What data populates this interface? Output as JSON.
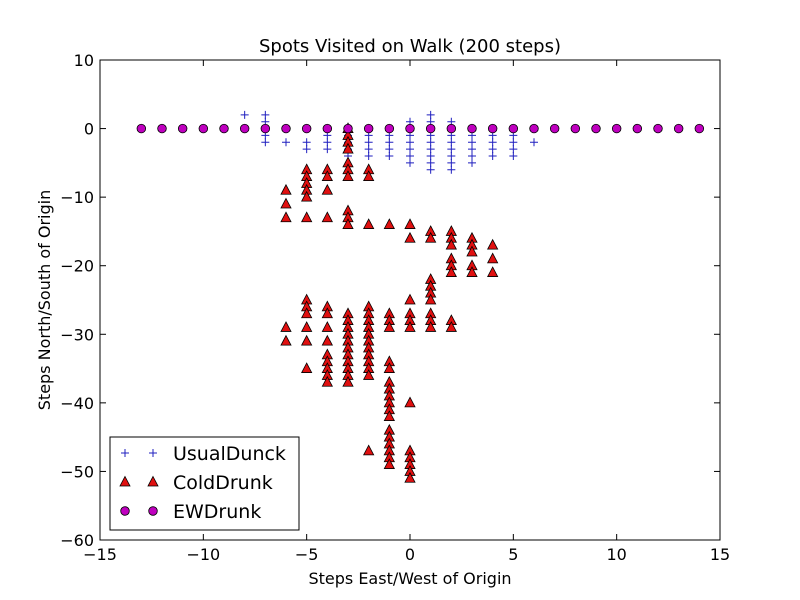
{
  "chart_data": {
    "type": "scatter",
    "title": "Spots Visited on Walk (200 steps)",
    "xlabel": "Steps East/West of Origin",
    "ylabel": "Steps North/South of Origin",
    "xlim": [
      -15,
      15
    ],
    "ylim": [
      -60,
      10
    ],
    "xticks": [
      -15,
      -10,
      -5,
      0,
      5,
      10,
      15
    ],
    "xtick_labels": [
      "−15",
      "−10",
      "−5",
      "0",
      "5",
      "10",
      "15"
    ],
    "yticks": [
      10,
      0,
      -10,
      -20,
      -30,
      -40,
      -50,
      -60
    ],
    "ytick_labels": [
      "10",
      "0",
      "−10",
      "−20",
      "−30",
      "−40",
      "−50",
      "−60"
    ],
    "grid": false,
    "legend_position": "lower-left",
    "series": [
      {
        "name": "UsualDunck",
        "marker": "plus",
        "color": "#1f1fbf",
        "points": [
          [
            -8,
            2
          ],
          [
            -8,
            0
          ],
          [
            -7,
            2
          ],
          [
            -7,
            1
          ],
          [
            -7,
            0
          ],
          [
            -7,
            -1
          ],
          [
            -7,
            -2
          ],
          [
            -6,
            0
          ],
          [
            -6,
            -2
          ],
          [
            -5,
            0
          ],
          [
            -5,
            -2
          ],
          [
            -5,
            -3
          ],
          [
            -4,
            0
          ],
          [
            -4,
            -1
          ],
          [
            -4,
            -2
          ],
          [
            -4,
            -3
          ],
          [
            -3,
            0
          ],
          [
            -3,
            -1
          ],
          [
            -3,
            -2
          ],
          [
            -3,
            -3
          ],
          [
            -3,
            -4
          ],
          [
            -2,
            0
          ],
          [
            -2,
            -1
          ],
          [
            -2,
            -2
          ],
          [
            -2,
            -3
          ],
          [
            -2,
            -4
          ],
          [
            -1,
            0
          ],
          [
            -1,
            -1
          ],
          [
            -1,
            -2
          ],
          [
            -1,
            -3
          ],
          [
            -1,
            -4
          ],
          [
            0,
            1
          ],
          [
            0,
            0
          ],
          [
            0,
            -1
          ],
          [
            0,
            -2
          ],
          [
            0,
            -3
          ],
          [
            0,
            -4
          ],
          [
            0,
            -5
          ],
          [
            1,
            2
          ],
          [
            1,
            1
          ],
          [
            1,
            0
          ],
          [
            1,
            -1
          ],
          [
            1,
            -2
          ],
          [
            1,
            -3
          ],
          [
            1,
            -4
          ],
          [
            1,
            -5
          ],
          [
            1,
            -6
          ],
          [
            2,
            1
          ],
          [
            2,
            0
          ],
          [
            2,
            -1
          ],
          [
            2,
            -2
          ],
          [
            2,
            -3
          ],
          [
            2,
            -4
          ],
          [
            2,
            -5
          ],
          [
            2,
            -6
          ],
          [
            3,
            0
          ],
          [
            3,
            -1
          ],
          [
            3,
            -2
          ],
          [
            3,
            -3
          ],
          [
            3,
            -4
          ],
          [
            3,
            -5
          ],
          [
            4,
            0
          ],
          [
            4,
            -1
          ],
          [
            4,
            -2
          ],
          [
            4,
            -3
          ],
          [
            4,
            -4
          ],
          [
            5,
            0
          ],
          [
            5,
            -1
          ],
          [
            5,
            -2
          ],
          [
            5,
            -3
          ],
          [
            5,
            -4
          ],
          [
            6,
            -2
          ]
        ]
      },
      {
        "name": "ColdDrunk",
        "marker": "triangle",
        "color": "#e01010",
        "points": [
          [
            -6,
            -9
          ],
          [
            -6,
            -11
          ],
          [
            -6,
            -13
          ],
          [
            -5,
            -6
          ],
          [
            -5,
            -7
          ],
          [
            -5,
            -8
          ],
          [
            -5,
            -9
          ],
          [
            -5,
            -10
          ],
          [
            -5,
            -13
          ],
          [
            -4,
            -6
          ],
          [
            -4,
            -7
          ],
          [
            -4,
            -9
          ],
          [
            -4,
            -13
          ],
          [
            -3,
            0
          ],
          [
            -3,
            -1
          ],
          [
            -3,
            -2
          ],
          [
            -3,
            -3
          ],
          [
            -3,
            -5
          ],
          [
            -3,
            -6
          ],
          [
            -3,
            -7
          ],
          [
            -3,
            -12
          ],
          [
            -3,
            -13
          ],
          [
            -3,
            -14
          ],
          [
            -2,
            -6
          ],
          [
            -2,
            -7
          ],
          [
            -2,
            -14
          ],
          [
            -1,
            -14
          ],
          [
            0,
            -14
          ],
          [
            0,
            -16
          ],
          [
            1,
            -15
          ],
          [
            1,
            -16
          ],
          [
            2,
            -15
          ],
          [
            2,
            -16
          ],
          [
            2,
            -17
          ],
          [
            2,
            -19
          ],
          [
            2,
            -20
          ],
          [
            2,
            -21
          ],
          [
            3,
            -16
          ],
          [
            3,
            -17
          ],
          [
            3,
            -18
          ],
          [
            3,
            -20
          ],
          [
            3,
            -21
          ],
          [
            4,
            -17
          ],
          [
            4,
            -19
          ],
          [
            4,
            -21
          ],
          [
            1,
            -22
          ],
          [
            1,
            -23
          ],
          [
            1,
            -24
          ],
          [
            1,
            -25
          ],
          [
            0,
            -25
          ],
          [
            0,
            -27
          ],
          [
            0,
            -28
          ],
          [
            0,
            -29
          ],
          [
            1,
            -27
          ],
          [
            1,
            -28
          ],
          [
            1,
            -29
          ],
          [
            2,
            -28
          ],
          [
            2,
            -29
          ],
          [
            -6,
            -29
          ],
          [
            -6,
            -31
          ],
          [
            -5,
            -25
          ],
          [
            -5,
            -26
          ],
          [
            -5,
            -27
          ],
          [
            -5,
            -29
          ],
          [
            -5,
            -31
          ],
          [
            -5,
            -35
          ],
          [
            -4,
            -26
          ],
          [
            -4,
            -27
          ],
          [
            -4,
            -29
          ],
          [
            -4,
            -31
          ],
          [
            -4,
            -33
          ],
          [
            -4,
            -34
          ],
          [
            -4,
            -35
          ],
          [
            -4,
            -36
          ],
          [
            -4,
            -37
          ],
          [
            -3,
            -27
          ],
          [
            -3,
            -28
          ],
          [
            -3,
            -29
          ],
          [
            -3,
            -30
          ],
          [
            -3,
            -31
          ],
          [
            -3,
            -32
          ],
          [
            -3,
            -33
          ],
          [
            -3,
            -34
          ],
          [
            -3,
            -35
          ],
          [
            -3,
            -36
          ],
          [
            -3,
            -37
          ],
          [
            -2,
            -26
          ],
          [
            -2,
            -27
          ],
          [
            -2,
            -28
          ],
          [
            -2,
            -29
          ],
          [
            -2,
            -30
          ],
          [
            -2,
            -31
          ],
          [
            -2,
            -32
          ],
          [
            -2,
            -33
          ],
          [
            -2,
            -34
          ],
          [
            -2,
            -35
          ],
          [
            -2,
            -36
          ],
          [
            -1,
            -27
          ],
          [
            -1,
            -28
          ],
          [
            -1,
            -29
          ],
          [
            -1,
            -34
          ],
          [
            -1,
            -35
          ],
          [
            -1,
            -37
          ],
          [
            -1,
            -38
          ],
          [
            -1,
            -39
          ],
          [
            -1,
            -40
          ],
          [
            -1,
            -41
          ],
          [
            -1,
            -42
          ],
          [
            -1,
            -44
          ],
          [
            -1,
            -45
          ],
          [
            -1,
            -46
          ],
          [
            -1,
            -47
          ],
          [
            -1,
            -48
          ],
          [
            -1,
            -49
          ],
          [
            -2,
            -47
          ],
          [
            0,
            -40
          ],
          [
            0,
            -47
          ],
          [
            0,
            -48
          ],
          [
            0,
            -49
          ],
          [
            0,
            -50
          ],
          [
            0,
            -51
          ]
        ]
      },
      {
        "name": "EWDrunk",
        "marker": "circle",
        "color": "#bf00bf",
        "points": [
          [
            -13,
            0
          ],
          [
            -12,
            0
          ],
          [
            -11,
            0
          ],
          [
            -10,
            0
          ],
          [
            -9,
            0
          ],
          [
            -8,
            0
          ],
          [
            -7,
            0
          ],
          [
            -6,
            0
          ],
          [
            -5,
            0
          ],
          [
            -4,
            0
          ],
          [
            -3,
            0
          ],
          [
            -2,
            0
          ],
          [
            -1,
            0
          ],
          [
            0,
            0
          ],
          [
            1,
            0
          ],
          [
            2,
            0
          ],
          [
            3,
            0
          ],
          [
            4,
            0
          ],
          [
            5,
            0
          ],
          [
            6,
            0
          ],
          [
            7,
            0
          ],
          [
            8,
            0
          ],
          [
            9,
            0
          ],
          [
            10,
            0
          ],
          [
            11,
            0
          ],
          [
            12,
            0
          ],
          [
            13,
            0
          ],
          [
            14,
            0
          ]
        ]
      }
    ]
  }
}
